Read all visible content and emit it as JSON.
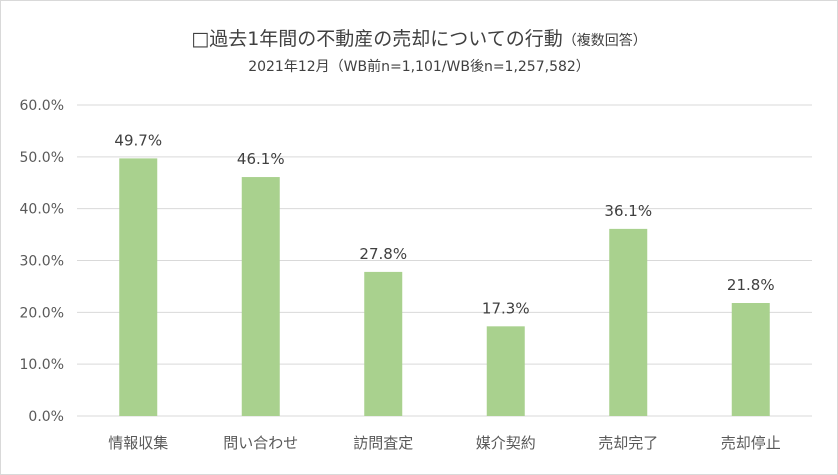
{
  "chart_data": {
    "type": "bar",
    "title": "□過去1年間の不動産の売却についての行動",
    "title_note": "（複数回答）",
    "subtitle": "2021年12月（WB前n=1,101/WB後n=1,257,582）",
    "categories": [
      "情報収集",
      "問い合わせ",
      "訪問査定",
      "媒介契約",
      "売却完了",
      "売却停止"
    ],
    "values": [
      49.7,
      46.1,
      27.8,
      17.3,
      36.1,
      21.8
    ],
    "data_labels": [
      "49.7%",
      "46.1%",
      "27.8%",
      "17.3%",
      "36.1%",
      "21.8%"
    ],
    "y_ticks": [
      "0.0%",
      "10.0%",
      "20.0%",
      "30.0%",
      "40.0%",
      "50.0%",
      "60.0%"
    ],
    "ylim": [
      0,
      60
    ],
    "xlabel": "",
    "ylabel": "",
    "grid": true,
    "legend": "none",
    "bar_color": "#a9d18e",
    "grid_color": "#d9d9d9"
  }
}
